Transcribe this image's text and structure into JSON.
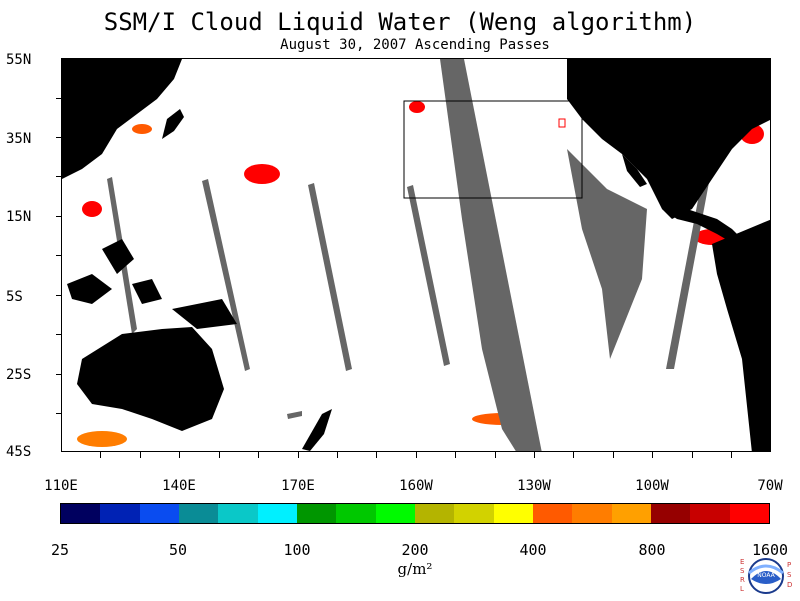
{
  "title": "SSM/I Cloud Liquid Water (Weng algorithm)",
  "subtitle": "August 30, 2007  Ascending Passes",
  "map": {
    "lat_labels": [
      "55N",
      "35N",
      "15N",
      "5S",
      "25S",
      "45S"
    ],
    "lon_labels": [
      "110E",
      "140E",
      "170E",
      "160W",
      "130W",
      "100W",
      "70W"
    ],
    "land_color": "#000000",
    "missing_color": "#666666",
    "background_color": "#ffffff"
  },
  "colorbar": {
    "colors": [
      "#00005f",
      "#0022b4",
      "#0a4cf0",
      "#0a8c96",
      "#0ac8c8",
      "#00f0ff",
      "#009600",
      "#00c800",
      "#00fa00",
      "#b4b400",
      "#d2d200",
      "#ffff00",
      "#ff5a00",
      "#ff7d00",
      "#ffa000",
      "#960000",
      "#c80000",
      "#ff0000"
    ],
    "labels": [
      "25",
      "50",
      "100",
      "200",
      "400",
      "800",
      "1600"
    ],
    "units": "g/m²"
  },
  "logo": {
    "left_text": "ESRL",
    "right_text": "PSD",
    "center_text": "NOAA"
  }
}
